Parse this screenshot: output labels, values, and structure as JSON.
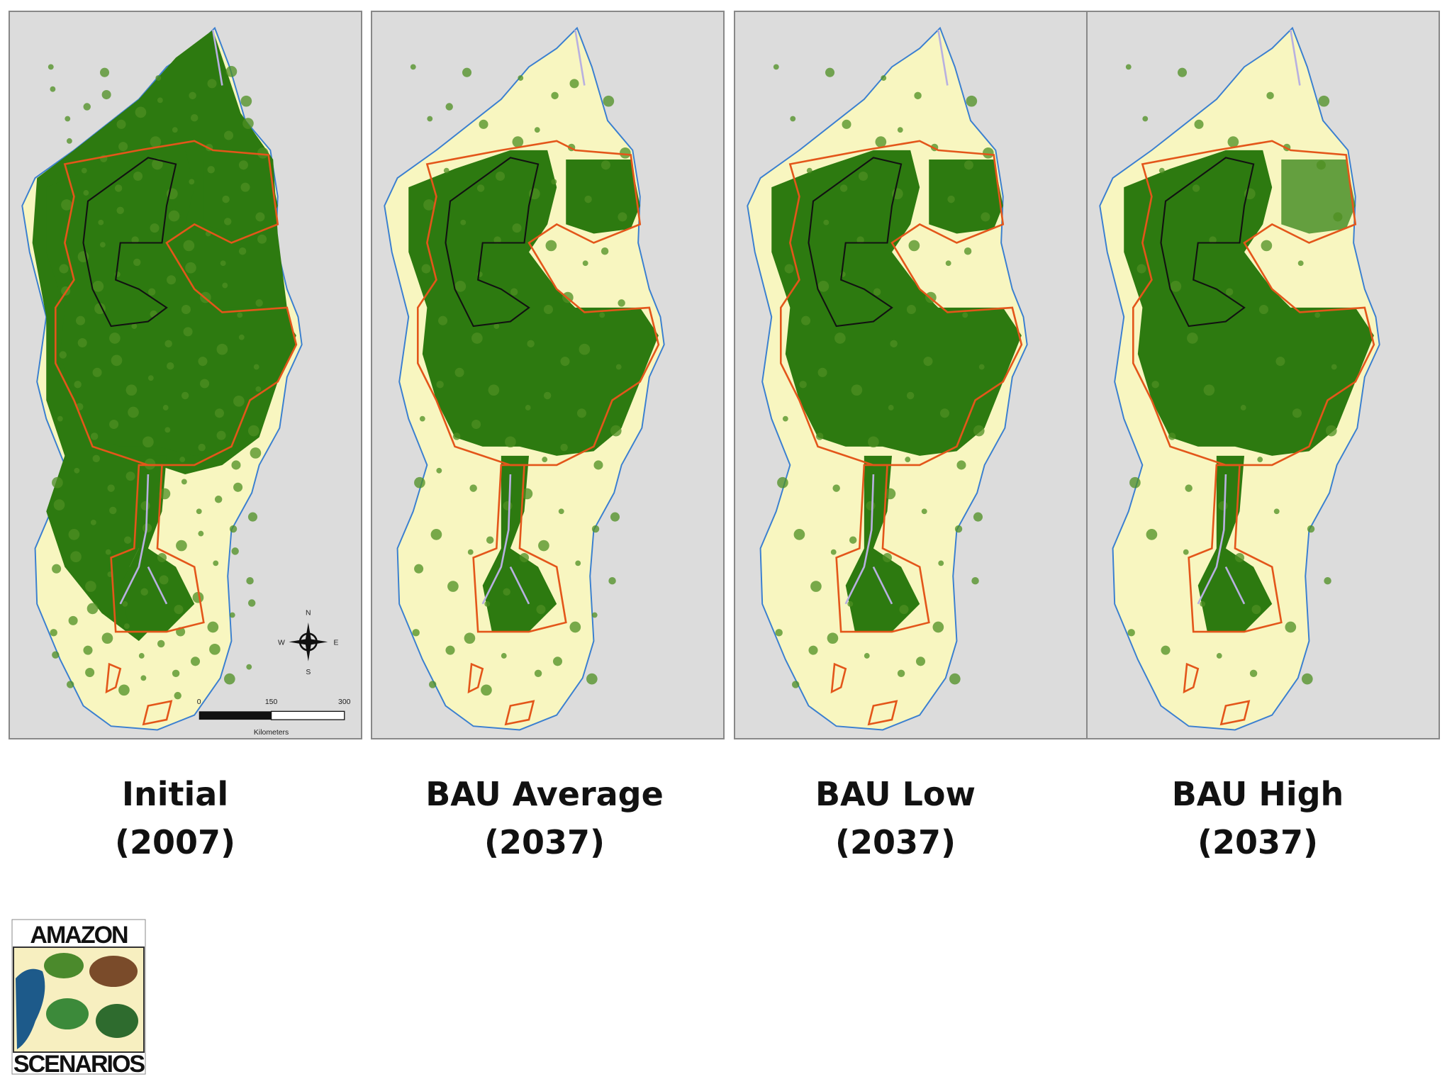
{
  "panels": [
    {
      "title_lines": [
        "Initial",
        "(2007)"
      ]
    },
    {
      "title_lines": [
        "BAU Average",
        "(2037)"
      ]
    },
    {
      "title_lines": [
        "BAU Low",
        "(2037)"
      ]
    },
    {
      "title_lines": [
        "BAU High",
        "(2037)"
      ]
    }
  ],
  "scale_bar": {
    "ticks": [
      "0",
      "150",
      "300"
    ],
    "unit": "Kilometers"
  },
  "compass": {
    "n": "N",
    "e": "E",
    "s": "S",
    "w": "W"
  },
  "logo": {
    "top": "AMAZON",
    "bottom": "SCENARIOS"
  }
}
